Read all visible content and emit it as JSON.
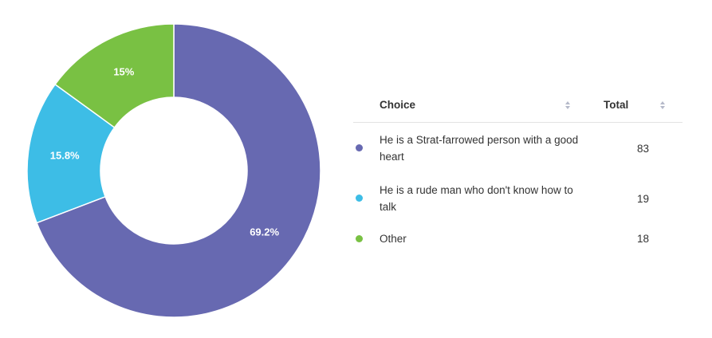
{
  "chart_data": {
    "type": "pie",
    "categories": [
      "He is a Strat-farrowed person with a good heart",
      "He is a rude man who don't know how to talk",
      "Other"
    ],
    "values": [
      69.2,
      15.8,
      15
    ],
    "value_labels": [
      "69.2%",
      "15.8%",
      "15%"
    ],
    "colors": [
      "#6769b1",
      "#3dbde6",
      "#79c143"
    ]
  },
  "table": {
    "headers": [
      "Choice",
      "Total"
    ],
    "totals": [
      83,
      19,
      18
    ]
  }
}
